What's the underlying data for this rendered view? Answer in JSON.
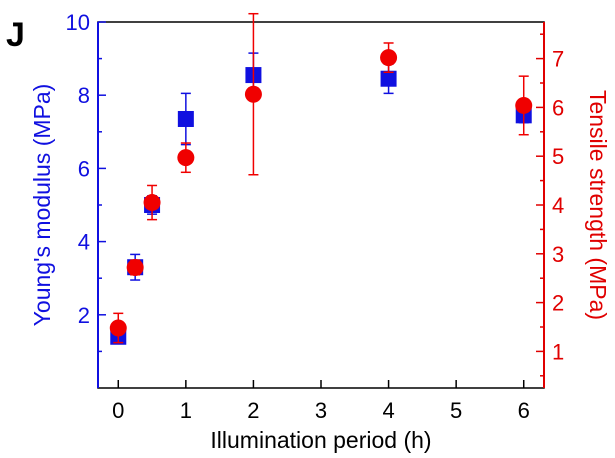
{
  "panel_label": "J",
  "colors": {
    "left_axis": "#1010e0",
    "right_axis": "#e00000",
    "frame": "#000000",
    "square_series": "#1010e0",
    "circle_series": "#f00000"
  },
  "chart_data": {
    "type": "scatter",
    "title": "",
    "xlabel": "Illumination period (h)",
    "ylabel": "Young's modulus (MPa)",
    "y2label": "Tensile strength (MPa)",
    "xlim": [
      -0.3,
      6.3
    ],
    "ylim": [
      0,
      10
    ],
    "y2lim": [
      0.25,
      7.75
    ],
    "x_ticks": [
      0,
      1,
      2,
      3,
      4,
      5,
      6
    ],
    "y_ticks": [
      2,
      4,
      6,
      8,
      10
    ],
    "y2_ticks": [
      1,
      2,
      3,
      4,
      5,
      6,
      7
    ],
    "grid": false,
    "legend": "none",
    "series": [
      {
        "axis": "left",
        "marker": "square",
        "x": [
          0,
          0.25,
          0.5,
          1,
          2,
          4,
          6
        ],
        "y": [
          1.4,
          3.3,
          5.0,
          7.35,
          8.55,
          8.45,
          7.45
        ],
        "err": [
          0.15,
          0.35,
          0.25,
          0.7,
          0.6,
          0.4,
          0.2
        ]
      },
      {
        "axis": "right",
        "marker": "circle",
        "x": [
          0,
          0.25,
          0.5,
          1,
          2,
          4,
          6
        ],
        "y": [
          1.48,
          2.72,
          4.05,
          4.97,
          6.27,
          7.02,
          6.04
        ],
        "err": [
          0.3,
          0.15,
          0.35,
          0.3,
          1.65,
          0.3,
          0.6
        ]
      }
    ]
  }
}
